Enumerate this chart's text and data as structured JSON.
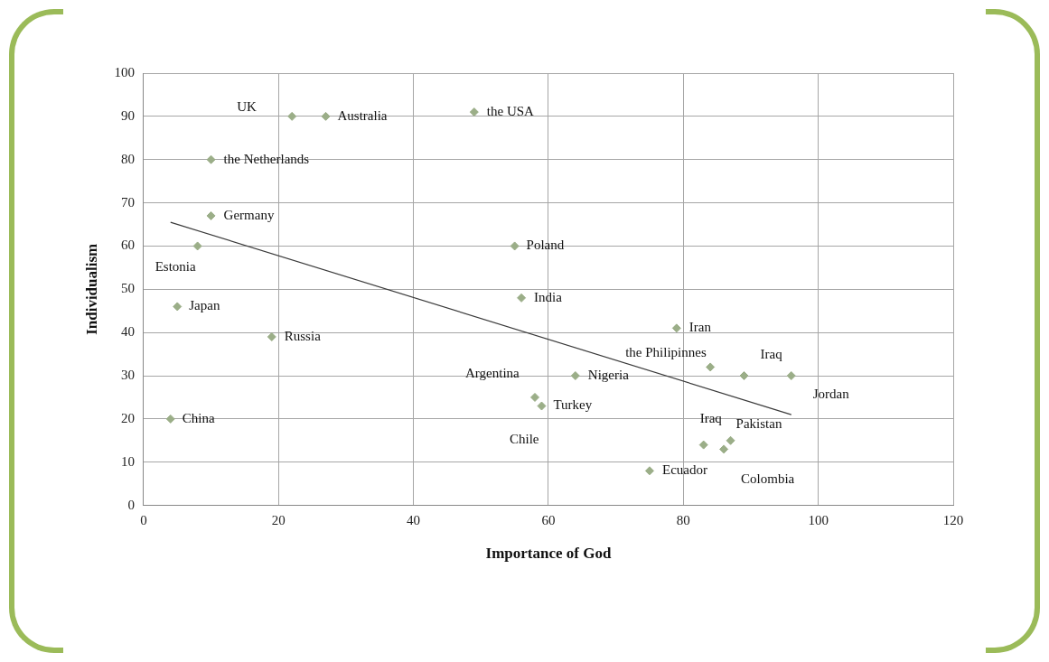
{
  "chart_data": {
    "type": "scatter",
    "xlabel": "Importance of God",
    "ylabel": "Individualism",
    "xlim": [
      0,
      120
    ],
    "xticks": [
      0,
      20,
      40,
      60,
      80,
      100,
      120
    ],
    "ylim": [
      0,
      100
    ],
    "yticks": [
      0,
      10,
      20,
      30,
      40,
      50,
      60,
      70,
      80,
      90,
      100
    ],
    "grid": true,
    "legend": false,
    "series": [
      {
        "color": "#9bae88",
        "marker": "diamond",
        "x": [
          22,
          27,
          49,
          10,
          10,
          8,
          5,
          19,
          4,
          55,
          56,
          79,
          84,
          89,
          96,
          64,
          58,
          59,
          83,
          87,
          86,
          75
        ],
        "values": [
          90,
          90,
          91,
          80,
          67,
          60,
          46,
          39,
          20,
          60,
          48,
          41,
          32,
          30,
          30,
          30,
          25,
          23,
          14,
          15,
          13,
          8
        ]
      },
      {
        "type": "line",
        "color": "#3a3a3a",
        "x": [
          4,
          96
        ],
        "values": [
          65.5,
          21
        ]
      }
    ],
    "annotations": [
      {
        "text": "UK",
        "x": 22,
        "y": 90
      },
      {
        "text": "Australia",
        "x": 27,
        "y": 90
      },
      {
        "text": "the USA",
        "x": 49,
        "y": 91
      },
      {
        "text": "the Netherlands",
        "x": 10,
        "y": 80
      },
      {
        "text": "Germany",
        "x": 10,
        "y": 67
      },
      {
        "text": "Estonia",
        "x": 8,
        "y": 60
      },
      {
        "text": "Japan",
        "x": 5,
        "y": 46
      },
      {
        "text": "Russia",
        "x": 19,
        "y": 39
      },
      {
        "text": "China",
        "x": 4,
        "y": 20
      },
      {
        "text": "Poland",
        "x": 55,
        "y": 60
      },
      {
        "text": "India",
        "x": 56,
        "y": 48
      },
      {
        "text": "Iran",
        "x": 79,
        "y": 41
      },
      {
        "text": "the Philipinnes",
        "x": 84,
        "y": 32
      },
      {
        "text": "Iraq",
        "x": 89,
        "y": 30
      },
      {
        "text": "Jordan",
        "x": 96,
        "y": 30
      },
      {
        "text": "Argentina",
        "x": 58,
        "y": 25
      },
      {
        "text": "Nigeria",
        "x": 64,
        "y": 30
      },
      {
        "text": "Turkey",
        "x": 59,
        "y": 23
      },
      {
        "text": "Iraq",
        "x": 83,
        "y": 14
      },
      {
        "text": "Pakistan",
        "x": 87,
        "y": 15
      },
      "Chile",
      {
        "text": "Ecuador",
        "x": 75,
        "y": 8
      },
      {
        "text": "Colombia",
        "x": 86,
        "y": 13
      }
    ]
  }
}
